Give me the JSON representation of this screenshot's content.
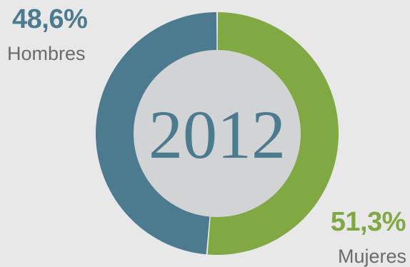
{
  "colors": {
    "men": "#4c7b90",
    "women": "#80a944",
    "center": "#d2d3d4",
    "year": "#4c7b90"
  },
  "chart_data": {
    "type": "pie",
    "center_label": "2012",
    "slices": [
      {
        "name": "Hombres",
        "value": 48.6,
        "label": "48,6%"
      },
      {
        "name": "Mujeres",
        "value": 51.3,
        "label": "51,3%"
      }
    ]
  }
}
